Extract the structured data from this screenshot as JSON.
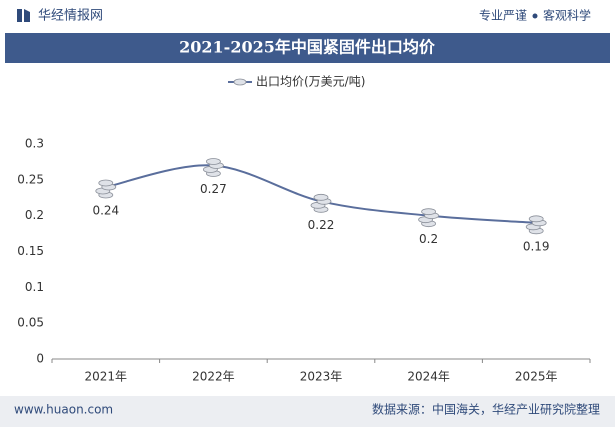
{
  "header": {
    "brand": "华经情报网",
    "slogan_left": "专业严谨",
    "slogan_right": "客观科学"
  },
  "chart_data": {
    "type": "line",
    "title": "2021-2025年中国紧固件出口均价",
    "categories": [
      "2021年",
      "2022年",
      "2023年",
      "2024年",
      "2025年"
    ],
    "series": [
      {
        "name": "出口均价(万美元/吨)",
        "color": "#5a6e9c",
        "values": [
          0.24,
          0.27,
          0.22,
          0.2,
          0.19
        ]
      }
    ],
    "ylim": [
      0,
      0.3
    ],
    "yticks": [
      0,
      0.05,
      0.1,
      0.15,
      0.2,
      0.25,
      0.3
    ],
    "grid": false,
    "legend": "top",
    "smooth": true
  },
  "footer": {
    "website": "www.huaon.com",
    "source": "数据来源：中国海关，华经产业研究院整理"
  }
}
